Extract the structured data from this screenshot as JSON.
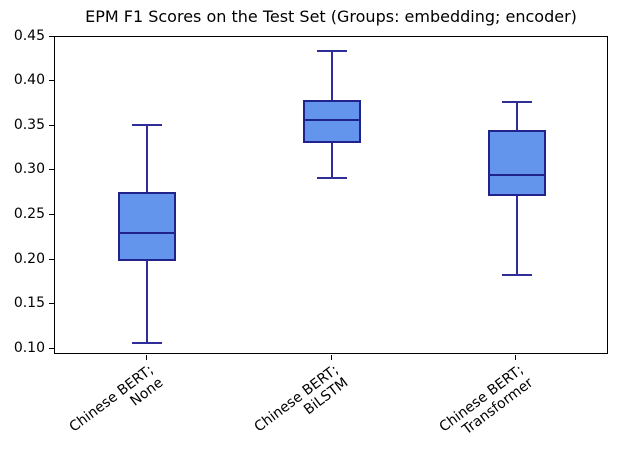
{
  "chart_data": {
    "type": "boxplot",
    "title": "EPM F1 Scores on the Test Set (Groups: embedding; encoder)",
    "categories": [
      "Chinese BERT;\nNone",
      "Chinese BERT;\nBiLSTM",
      "Chinese BERT;\nTransformer"
    ],
    "ytick_labels": [
      "0.45",
      "0.40",
      "0.35",
      "0.30",
      "0.25",
      "0.20",
      "0.15",
      "0.10"
    ],
    "ylim": [
      0.094,
      0.45
    ],
    "grid": false,
    "legend": false,
    "series": [
      {
        "name": "Chinese BERT; None",
        "whislo": 0.107,
        "q1": 0.199,
        "med": 0.231,
        "q3": 0.277,
        "whishi": 0.352
      },
      {
        "name": "Chinese BERT; BiLSTM",
        "whislo": 0.292,
        "q1": 0.331,
        "med": 0.357,
        "q3": 0.38,
        "whishi": 0.434
      },
      {
        "name": "Chinese BERT; Transformer",
        "whislo": 0.184,
        "q1": 0.272,
        "med": 0.296,
        "q3": 0.346,
        "whishi": 0.377
      }
    ],
    "colors": {
      "box_fill": "#6495ED",
      "box_edge": "#22228C",
      "median": "#22228C",
      "whisker": "#2E2E96",
      "spine": "#000000",
      "text": "#000000",
      "background": "#FFFFFF"
    }
  }
}
